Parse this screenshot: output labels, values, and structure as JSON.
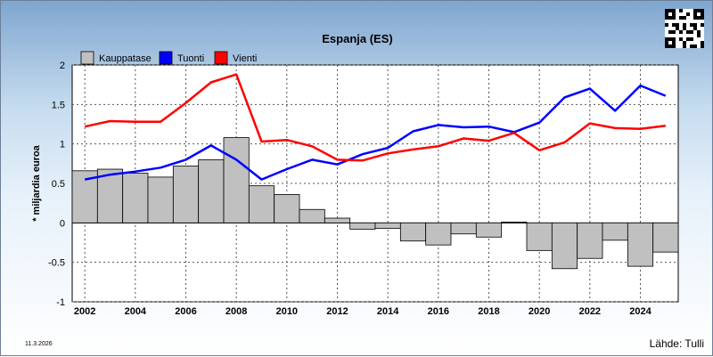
{
  "chart_data": {
    "type": "bar+line",
    "title": "Espanja (ES)",
    "ylabel": "* miljardia euroa",
    "xlabel": "",
    "ylim": [
      -1,
      2
    ],
    "yticks": [
      "2",
      "1.5",
      "1",
      "0.5",
      "0",
      "-0.5",
      "-1"
    ],
    "xticks": [
      "2002",
      "2004",
      "2006",
      "2008",
      "2010",
      "2012",
      "2014",
      "2016",
      "2018",
      "2020",
      "2022",
      "2024"
    ],
    "x": [
      2002,
      2003,
      2004,
      2005,
      2006,
      2007,
      2008,
      2009,
      2010,
      2011,
      2012,
      2013,
      2014,
      2015,
      2016,
      2017,
      2018,
      2019,
      2020,
      2021,
      2022,
      2023,
      2024,
      2025
    ],
    "grid": true,
    "legend_position": "top-left",
    "series": [
      {
        "name": "Kauppatase",
        "kind": "bar",
        "color": "#c0c0c0",
        "values": [
          0.66,
          0.68,
          0.63,
          0.58,
          0.72,
          0.8,
          1.08,
          0.47,
          0.36,
          0.17,
          0.06,
          -0.08,
          -0.07,
          -0.23,
          -0.28,
          -0.14,
          -0.18,
          0.01,
          -0.35,
          -0.58,
          -0.45,
          -0.22,
          -0.55,
          -0.37
        ]
      },
      {
        "name": "Tuonti",
        "kind": "line",
        "color": "#0000ff",
        "values": [
          0.55,
          0.61,
          0.65,
          0.7,
          0.8,
          0.98,
          0.8,
          0.55,
          0.68,
          0.8,
          0.74,
          0.87,
          0.95,
          1.16,
          1.24,
          1.21,
          1.22,
          1.15,
          1.27,
          1.59,
          1.7,
          1.42,
          1.74,
          1.61
        ]
      },
      {
        "name": "Vienti",
        "kind": "line",
        "color": "#ff0000",
        "values": [
          1.22,
          1.29,
          1.28,
          1.28,
          1.52,
          1.78,
          1.88,
          1.03,
          1.05,
          0.97,
          0.8,
          0.79,
          0.88,
          0.93,
          0.97,
          1.07,
          1.04,
          1.14,
          0.92,
          1.02,
          1.26,
          1.2,
          1.19,
          1.23
        ]
      }
    ]
  },
  "footer": {
    "date": "11.3.2026",
    "source": "Lähde: Tulli"
  },
  "qr_icon": "qr-code-icon"
}
